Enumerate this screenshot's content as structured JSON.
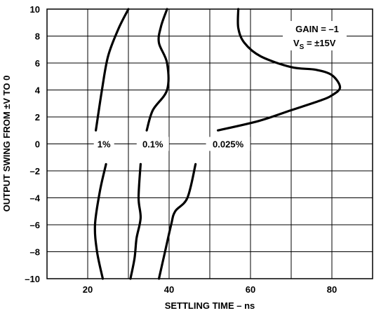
{
  "chart_data": {
    "type": "line",
    "title": "",
    "xlabel": "SETTLING TIME – ns",
    "ylabel": "OUTPUT SWING FROM ±V TO 0",
    "xlim": [
      10,
      90
    ],
    "ylim": [
      -10,
      10
    ],
    "x_ticks": [
      20,
      40,
      60,
      80
    ],
    "y_ticks": [
      10,
      8,
      6,
      4,
      2,
      0,
      -2,
      -4,
      -6,
      -8,
      -10
    ],
    "x_ticks_text": [
      "20",
      "40",
      "60",
      "80"
    ],
    "y_ticks_text": [
      "10",
      "8",
      "6",
      "4",
      "2",
      "0",
      "–2",
      "–4",
      "–6",
      "–8",
      "–10"
    ],
    "grid": true,
    "grid_x_step": 10,
    "grid_y_step": 2,
    "annotations": {
      "gain": "GAIN = –1",
      "vs_main": "V",
      "vs_sub": "S",
      "vs_value": " = ±15V"
    },
    "series": [
      {
        "name": "1%",
        "segments": [
          [
            [
              22.0,
              1.0
            ],
            [
              23.5,
              4.0
            ],
            [
              25.0,
              6.5
            ],
            [
              27.5,
              8.5
            ],
            [
              30.0,
              10.0
            ]
          ],
          [
            [
              24.5,
              -1.5
            ],
            [
              23.0,
              -3.5
            ],
            [
              21.8,
              -6.0
            ],
            [
              22.3,
              -8.0
            ],
            [
              23.7,
              -10.0
            ]
          ]
        ]
      },
      {
        "name": "0.1%",
        "segments": [
          [
            [
              34.5,
              1.0
            ],
            [
              36.0,
              2.5
            ],
            [
              39.5,
              4.0
            ],
            [
              39.5,
              6.0
            ],
            [
              37.5,
              7.5
            ],
            [
              38.0,
              8.7
            ],
            [
              39.5,
              10.0
            ]
          ],
          [
            [
              33.0,
              -1.5
            ],
            [
              32.5,
              -4.0
            ],
            [
              33.0,
              -5.5
            ],
            [
              32.0,
              -7.0
            ],
            [
              31.5,
              -8.5
            ],
            [
              30.5,
              -10.0
            ]
          ]
        ]
      },
      {
        "name": "0.025%",
        "segments": [
          [
            [
              52.0,
              1.0
            ],
            [
              62.0,
              1.7
            ],
            [
              70.0,
              2.5
            ],
            [
              77.0,
              3.2
            ],
            [
              80.0,
              3.6
            ],
            [
              82.0,
              4.2
            ],
            [
              80.0,
              5.1
            ],
            [
              76.0,
              5.5
            ],
            [
              70.0,
              5.7
            ],
            [
              62.5,
              6.5
            ],
            [
              58.5,
              7.5
            ],
            [
              57.0,
              8.6
            ],
            [
              57.0,
              10.0
            ]
          ],
          [
            [
              46.5,
              -1.5
            ],
            [
              44.5,
              -4.0
            ],
            [
              41.5,
              -5.0
            ],
            [
              40.5,
              -6.0
            ],
            [
              39.0,
              -8.0
            ],
            [
              37.5,
              -10.0
            ]
          ]
        ]
      }
    ],
    "curve_labels": [
      {
        "text": "1%",
        "x": 24.0,
        "y": 0
      },
      {
        "text": "0.1%",
        "x": 36.0,
        "y": 0
      },
      {
        "text": "0.025%",
        "x": 54.5,
        "y": 0
      }
    ]
  }
}
